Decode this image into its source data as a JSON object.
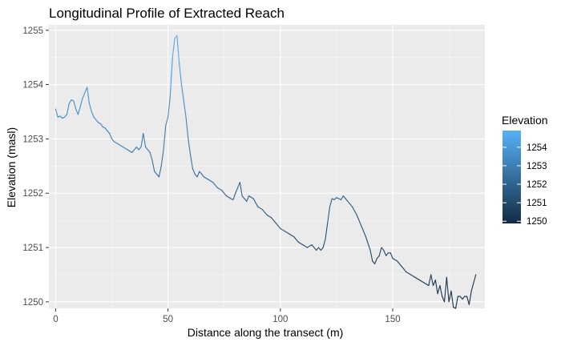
{
  "chart_data": {
    "type": "line",
    "title": "Longitudinal Profile of Extracted Reach",
    "xlabel": "Distance along the transect (m)",
    "ylabel": "Elevation (masl)",
    "xlim": [
      -3,
      191
    ],
    "ylim": [
      1249.88,
      1255.1
    ],
    "x_ticks": [
      0,
      50,
      100,
      150
    ],
    "y_ticks": [
      1250,
      1251,
      1252,
      1253,
      1254,
      1255
    ],
    "grid": true,
    "legend": {
      "title": "Elevation",
      "placement": "right",
      "type": "colorbar",
      "labels": [
        1254,
        1253,
        1252,
        1251,
        1250
      ],
      "range": [
        1249.88,
        1254.9
      ],
      "color_low": "#132b43",
      "color_high": "#56b1f7"
    },
    "colors": {
      "panel": "#ebebeb",
      "grid_major": "#ffffff",
      "grid_minor": "#f5f5f5"
    },
    "series": [
      {
        "x": [
          0,
          1,
          2,
          3,
          4,
          5,
          6,
          7,
          8,
          9,
          10,
          11,
          12,
          13,
          14,
          15,
          16,
          17,
          18,
          19,
          20,
          21,
          22,
          23,
          24,
          25,
          26,
          28,
          30,
          32,
          34,
          36,
          37,
          38,
          39,
          40,
          41,
          42,
          43,
          44,
          45,
          46,
          47,
          48,
          49,
          50,
          51,
          52,
          53,
          54,
          55,
          56,
          57,
          58,
          59,
          60,
          61,
          62,
          63,
          64,
          65,
          66,
          68,
          70,
          72,
          74,
          76,
          78,
          79,
          80,
          81,
          82,
          83,
          84,
          85,
          86,
          88,
          90,
          92,
          94,
          96,
          98,
          100,
          102,
          104,
          106,
          108,
          110,
          112,
          114,
          116,
          117,
          118,
          119,
          120,
          121,
          122,
          123,
          124,
          125,
          126,
          127,
          128,
          129,
          130,
          132,
          134,
          136,
          138,
          140,
          141,
          142,
          143,
          144,
          145,
          146,
          147,
          148,
          149,
          150,
          152,
          154,
          156,
          158,
          160,
          162,
          164,
          166,
          167,
          168,
          169,
          170,
          171,
          172,
          173,
          174,
          175,
          176,
          177,
          178,
          179,
          180,
          181,
          182,
          183,
          184,
          185,
          186,
          187
        ],
        "values": [
          1253.55,
          1253.4,
          1253.42,
          1253.38,
          1253.4,
          1253.45,
          1253.65,
          1253.72,
          1253.7,
          1253.55,
          1253.45,
          1253.6,
          1253.75,
          1253.85,
          1253.95,
          1253.65,
          1253.5,
          1253.4,
          1253.35,
          1253.3,
          1253.28,
          1253.22,
          1253.2,
          1253.15,
          1253.1,
          1253.0,
          1252.95,
          1252.9,
          1252.85,
          1252.8,
          1252.75,
          1252.85,
          1252.8,
          1252.85,
          1253.1,
          1252.85,
          1252.8,
          1252.75,
          1252.6,
          1252.4,
          1252.35,
          1252.3,
          1252.5,
          1252.8,
          1253.25,
          1253.4,
          1253.8,
          1254.5,
          1254.85,
          1254.9,
          1254.4,
          1254.0,
          1253.7,
          1253.4,
          1253.0,
          1252.7,
          1252.45,
          1252.35,
          1252.3,
          1252.4,
          1252.35,
          1252.3,
          1252.25,
          1252.2,
          1252.1,
          1252.05,
          1251.95,
          1251.9,
          1251.88,
          1252.0,
          1252.1,
          1252.2,
          1251.95,
          1251.9,
          1251.85,
          1251.95,
          1251.9,
          1251.75,
          1251.7,
          1251.6,
          1251.55,
          1251.45,
          1251.35,
          1251.3,
          1251.25,
          1251.2,
          1251.1,
          1251.05,
          1251.0,
          1251.05,
          1250.95,
          1251.0,
          1250.95,
          1251.0,
          1251.15,
          1251.45,
          1251.75,
          1251.9,
          1251.88,
          1251.92,
          1251.9,
          1251.88,
          1251.95,
          1251.9,
          1251.85,
          1251.75,
          1251.6,
          1251.4,
          1251.2,
          1250.95,
          1250.75,
          1250.7,
          1250.8,
          1250.85,
          1251.0,
          1250.95,
          1250.85,
          1250.9,
          1250.9,
          1250.8,
          1250.75,
          1250.65,
          1250.55,
          1250.5,
          1250.45,
          1250.4,
          1250.35,
          1250.3,
          1250.5,
          1250.3,
          1250.4,
          1250.15,
          1250.3,
          1250.1,
          1250.0,
          1250.45,
          1250.0,
          1250.2,
          1249.9,
          1249.88,
          1250.1,
          1250.1,
          1250.05,
          1250.1,
          1250.1,
          1249.95,
          1250.2,
          1250.35,
          1250.5
        ]
      }
    ]
  }
}
